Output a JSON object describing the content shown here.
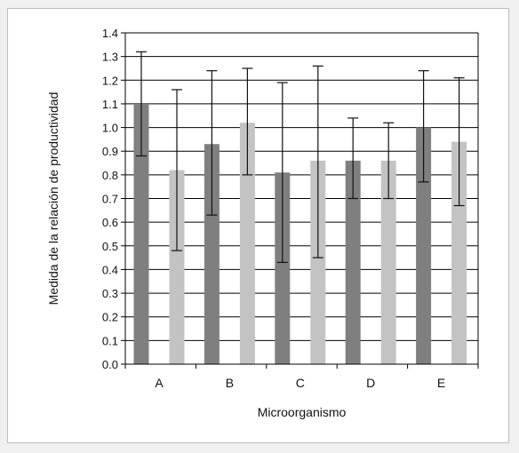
{
  "chart_data": {
    "type": "bar",
    "categories": [
      "A",
      "B",
      "C",
      "D",
      "E"
    ],
    "series": [
      {
        "color": "#7f7f7f",
        "values": [
          1.1,
          0.93,
          0.81,
          0.86,
          1.0
        ],
        "error_low": [
          0.88,
          0.63,
          0.43,
          0.7,
          0.77
        ],
        "error_high": [
          1.32,
          1.24,
          1.19,
          1.04,
          1.24
        ]
      },
      {
        "color": "#c3c3c3",
        "values": [
          0.82,
          1.02,
          0.86,
          0.86,
          0.94
        ],
        "error_low": [
          0.48,
          0.8,
          0.45,
          0.7,
          0.67
        ],
        "error_high": [
          1.16,
          1.25,
          1.26,
          1.02,
          1.21
        ]
      }
    ],
    "title": "",
    "xlabel": "Microorganismo",
    "ylabel": "Medida de la relación de productividad",
    "ylim": [
      0,
      1.4
    ],
    "yticks": [
      "0.0",
      "0.1",
      "0.2",
      "0.3",
      "0.4",
      "0.5",
      "0.6",
      "0.7",
      "0.8",
      "0.9",
      "1.0",
      "1.1",
      "1.2",
      "1.3",
      "1.4"
    ],
    "grid": true,
    "legend": "none"
  }
}
